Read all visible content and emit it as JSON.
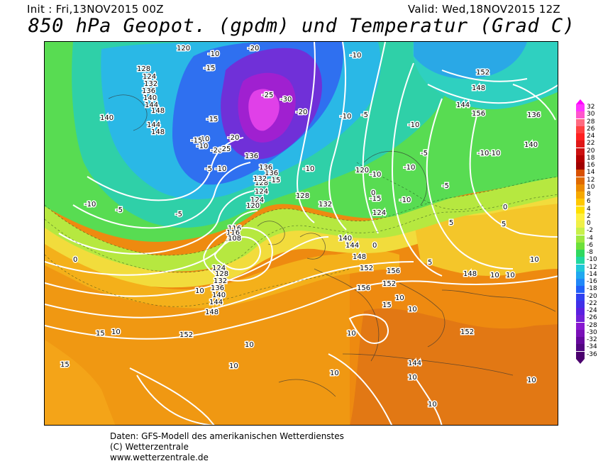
{
  "header": {
    "init": "Init : Fri,13NOV2015 00Z",
    "valid": "Valid: Wed,18NOV2015 12Z",
    "title": "850 hPa Geopot. (gpdm) und Temperatur (Grad C)"
  },
  "legend": {
    "values": [
      "32",
      "30",
      "28",
      "26",
      "24",
      "22",
      "20",
      "18",
      "16",
      "14",
      "12",
      "10",
      "8",
      "6",
      "4",
      "2",
      "0",
      "-2",
      "-4",
      "-6",
      "-8",
      "-10",
      "-12",
      "-14",
      "-16",
      "-18",
      "-20",
      "-22",
      "-24",
      "-26",
      "-28",
      "-30",
      "-32",
      "-34",
      "-36"
    ],
    "colors": [
      "#ff33ff",
      "#ff55cc",
      "#ff6a80",
      "#ff4040",
      "#ff2020",
      "#e01818",
      "#cc1010",
      "#b40000",
      "#a00000",
      "#d85000",
      "#e06a00",
      "#ec8a00",
      "#f6a800",
      "#ffc800",
      "#ffe000",
      "#fff040",
      "#f0f048",
      "#c8f04a",
      "#9ee840",
      "#6ce03a",
      "#30d860",
      "#20d8a0",
      "#20c8d8",
      "#20a8f0",
      "#2088f8",
      "#2060f8",
      "#3040f0",
      "#4030e8",
      "#5a20e0",
      "#7020d8",
      "#8818d0",
      "#7a10b8",
      "#66089c",
      "#520680",
      "#4b006e"
    ],
    "high_color": "#ff00ff",
    "low_color": "#4b006e"
  },
  "map_labels": {
    "geopotential": [
      "120",
      "128",
      "124",
      "132",
      "136",
      "140",
      "144",
      "148",
      "140",
      "144",
      "148",
      "136",
      "152",
      "148",
      "144",
      "136",
      "140",
      "136",
      "124",
      "120",
      "124",
      "128",
      "132",
      "136",
      "140",
      "144",
      "148",
      "152",
      "156",
      "156",
      "152",
      "152",
      "156",
      "116",
      "116",
      "108",
      "124",
      "128",
      "132",
      "136",
      "140",
      "144",
      "148",
      "152",
      "144",
      "132",
      "128",
      "120",
      "124",
      "148"
    ],
    "temperature": [
      "-10",
      "-15",
      "-20",
      "-25",
      "-30",
      "-20",
      "-15",
      "-10",
      "-10",
      "-5",
      "-10",
      "-15",
      "-10",
      "-10",
      "-5",
      "-10",
      "-15",
      "-10",
      "-10",
      "-5",
      "-10",
      "-10",
      "-10",
      "-5",
      "0",
      "5",
      "10",
      "15",
      "10",
      "10",
      "10",
      "10",
      "10",
      "10",
      "10",
      "15",
      "15",
      "10",
      "10",
      "5",
      "0",
      "-5",
      "-10",
      "-15",
      "-20",
      "-20",
      "-25",
      "-10",
      "0",
      "5",
      "0",
      "-5",
      "10",
      "10",
      "10",
      "10"
    ]
  },
  "footer": {
    "line1": "Daten: GFS-Modell des amerikanischen Wetterdienstes",
    "line2": "(C) Wetterzentrale",
    "line3": "www.wetterzentrale.de"
  },
  "colors": {
    "purple": "#9b2fd8",
    "magenta": "#e040e8",
    "blue": "#2f6cf0",
    "cyan": "#2fc0e8",
    "teal": "#2fd8b0",
    "green": "#4fe060",
    "lightgreen": "#a8e840",
    "yellow": "#f0e040",
    "orange_light": "#f8c020",
    "orange": "#f09a10",
    "orange_dark": "#e07a10"
  }
}
